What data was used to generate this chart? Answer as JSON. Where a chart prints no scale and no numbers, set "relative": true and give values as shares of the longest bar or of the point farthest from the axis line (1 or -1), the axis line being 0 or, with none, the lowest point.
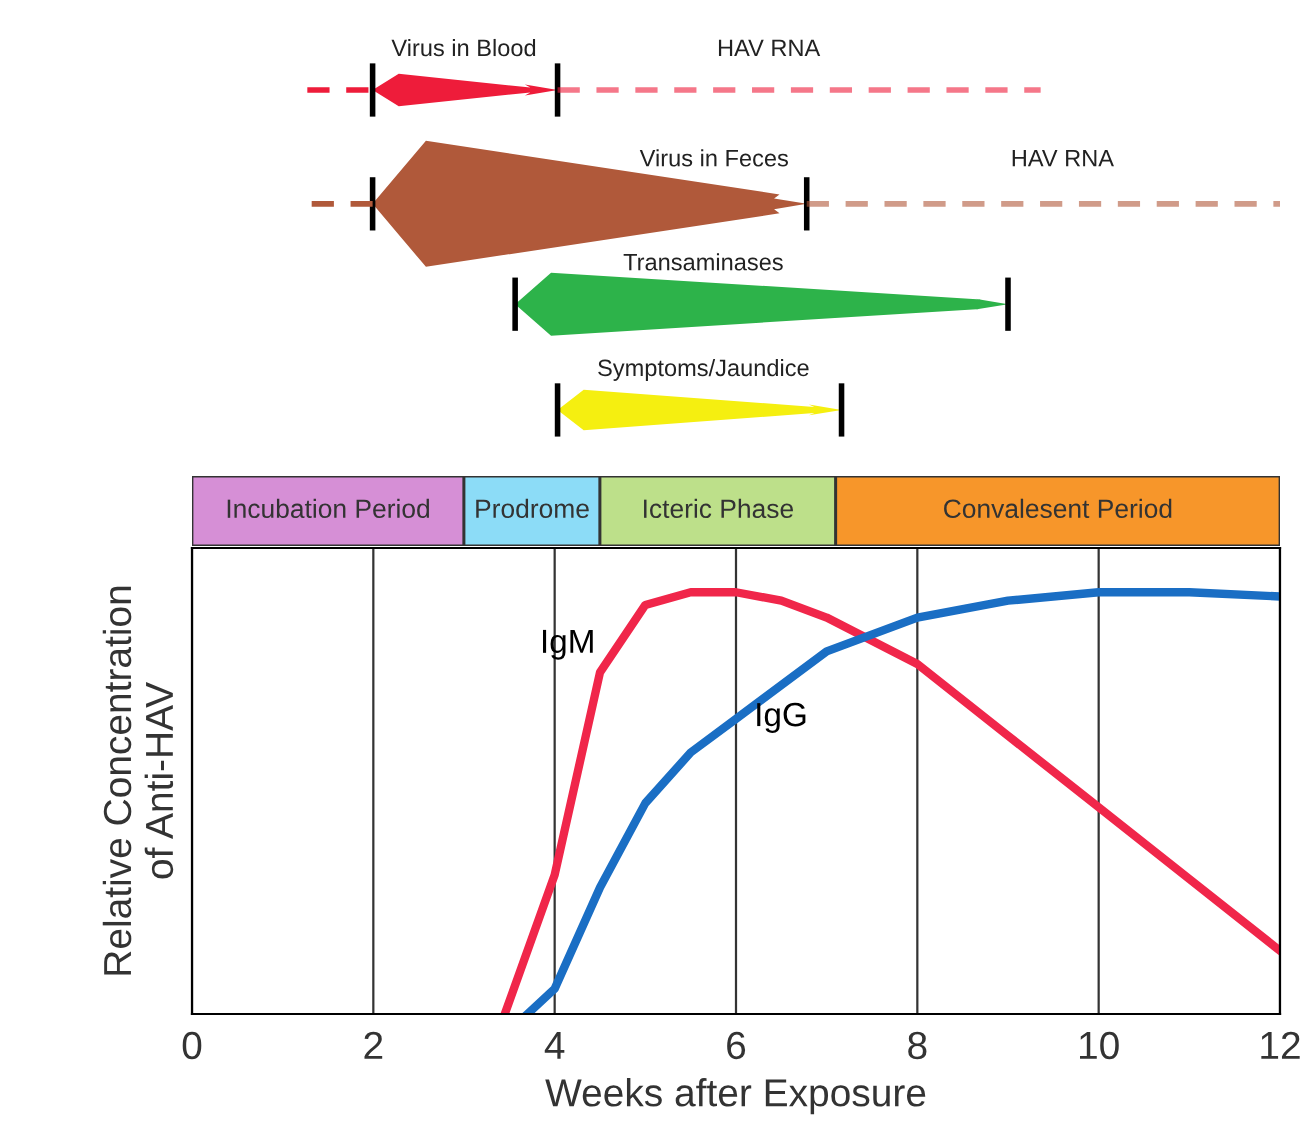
{
  "chart_data": [
    {
      "type": "other",
      "annotations": [
        "Virus in Blood",
        "HAV RNA",
        "Virus in Feces",
        "HAV RNA",
        "Transaminases",
        "Symptoms/Jaundice"
      ]
    },
    {
      "type": "bar",
      "orientation": "horizontal",
      "stacked": true,
      "tick_labels": false,
      "xlim": [
        0,
        12
      ],
      "categories": [
        null
      ],
      "series": [
        {
          "name": "Incubation Period",
          "color": "#d68fd6",
          "values": [
            3.0
          ]
        },
        {
          "name": "Prodrome",
          "color": "#8cdcf7",
          "values": [
            1.5
          ]
        },
        {
          "name": "Icteric Phase",
          "color": "#bde08a",
          "values": [
            2.6
          ]
        },
        {
          "name": "Convalesent Period",
          "color": "#f7962a",
          "values": [
            4.9
          ]
        }
      ]
    },
    {
      "type": "line",
      "relative": true,
      "xlabel": "Weeks after Exposure",
      "ylabel": "Relative Concentration\nof Anti-HAV",
      "xlim": [
        0,
        12
      ],
      "xticks": [
        0,
        2,
        4,
        6,
        8,
        10,
        12
      ],
      "grid": "x",
      "series": [
        {
          "name": "IgM",
          "color": "#f0264a",
          "x": [
            3.45,
            4,
            4.5,
            5,
            5.5,
            6,
            6.5,
            7,
            8,
            9,
            10,
            11,
            12
          ],
          "values": [
            0,
            0.33,
            0.81,
            0.97,
            1.0,
            1.0,
            0.98,
            0.94,
            0.83,
            0.66,
            0.49,
            0.32,
            0.15
          ]
        },
        {
          "name": "IgG",
          "color": "#1a6ec4",
          "x": [
            3.7,
            4,
            4.5,
            5,
            5.5,
            6,
            7,
            8,
            9,
            10,
            11,
            12
          ],
          "values": [
            0,
            0.06,
            0.3,
            0.5,
            0.62,
            0.7,
            0.86,
            0.94,
            0.98,
            1.0,
            1.0,
            0.99
          ]
        }
      ]
    }
  ]
}
